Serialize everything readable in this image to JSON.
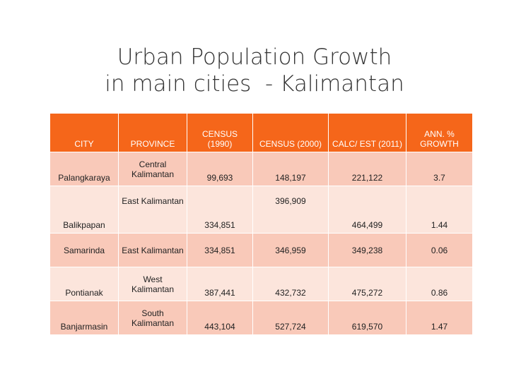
{
  "title": {
    "line1": "Urban Population Growth",
    "line2": "in main cities  - Kalimantan"
  },
  "table": {
    "headers": [
      "CITY",
      "PROVINCE",
      "CENSUS (1990)",
      "CENSUS (2000)",
      "CALC/ EST (2011)",
      "ANN. % GROWTH"
    ],
    "rows": [
      [
        "Palangkaraya",
        "Central Kalimantan",
        "99,693",
        "148,197",
        "221,122",
        "3.7"
      ],
      [
        "Balikpapan",
        "East Kalimantan",
        "334,851",
        "396,909",
        "464,499",
        "1.44"
      ],
      [
        "Samarinda",
        "East Kalimantan",
        "334,851",
        "346,959",
        "349,238",
        "0.06"
      ],
      [
        "Pontianak",
        "West Kalimantan",
        "387,441",
        "432,732",
        "475,272",
        "0.86"
      ],
      [
        "Banjarmasin",
        "South Kalimantan",
        "443,104",
        "527,724",
        "619,570",
        "1.47"
      ]
    ]
  },
  "colors": {
    "header_bg": "#f5661a",
    "row_dark": "#f9c9b9",
    "row_light": "#fce5dc"
  }
}
